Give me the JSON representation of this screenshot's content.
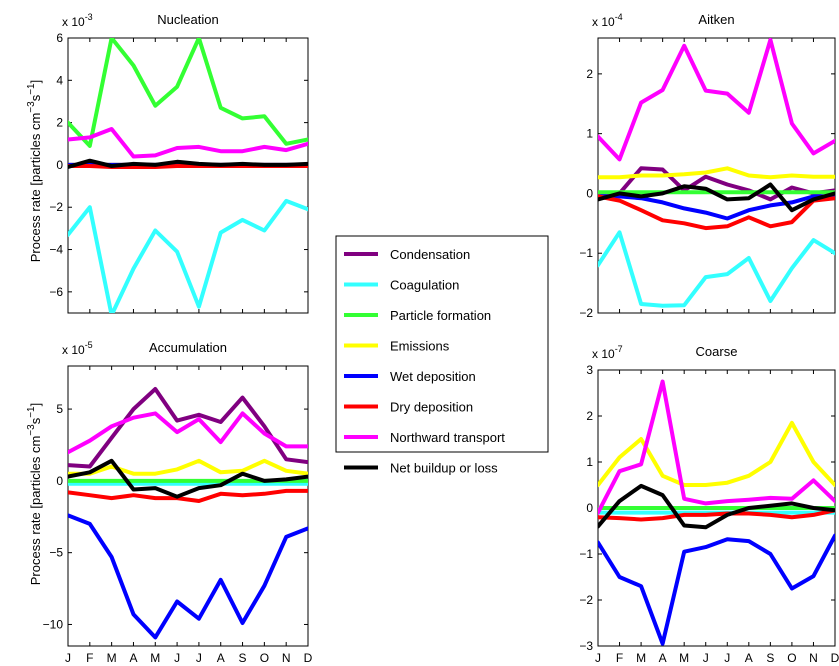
{
  "figure": {
    "ylabel_main": "Process rate [particles cm",
    "ylabel_sup": "−3",
    "ylabel_mid": "s",
    "ylabel_sup2": "−1",
    "ylabel_end": "]"
  },
  "legend": {
    "entries": [
      {
        "name": "Condensation",
        "color": "#800080"
      },
      {
        "name": "Coagulation",
        "color": "#33ffff"
      },
      {
        "name": "Particle formation",
        "color": "#33ff33"
      },
      {
        "name": "Emissions",
        "color": "#ffff00"
      },
      {
        "name": "Wet deposition",
        "color": "#0000ff"
      },
      {
        "name": "Dry deposition",
        "color": "#ff0000"
      },
      {
        "name": "Northward transport",
        "color": "#ff00ff"
      },
      {
        "name": "Net buildup or loss",
        "color": "#000000"
      }
    ]
  },
  "chart_data": [
    {
      "type": "line",
      "title": "Nucleation",
      "multiplier_base": "x 10",
      "multiplier_exp": "-3",
      "x": [
        "J",
        "F",
        "M",
        "A",
        "M",
        "J",
        "J",
        "A",
        "S",
        "O",
        "N",
        "D"
      ],
      "ylim": [
        -7,
        6
      ],
      "yticks": [
        -6,
        -4,
        -2,
        0,
        2,
        4,
        6
      ],
      "yticklabels": [
        "−6",
        "−4",
        "−2",
        "0",
        "2",
        "4",
        "6"
      ],
      "show_xticklabels": false,
      "series": [
        {
          "name": "Condensation",
          "values": [
            0,
            0,
            0,
            0,
            0,
            0,
            0,
            0,
            0,
            0,
            0,
            0
          ]
        },
        {
          "name": "Coagulation",
          "values": [
            -3.3,
            -2.0,
            -7.1,
            -4.9,
            -3.1,
            -4.1,
            -6.7,
            -3.2,
            -2.6,
            -3.1,
            -1.7,
            -2.1
          ]
        },
        {
          "name": "Particle formation",
          "values": [
            2.0,
            0.9,
            6.0,
            4.7,
            2.8,
            3.7,
            6.0,
            2.7,
            2.2,
            2.3,
            1.0,
            1.2
          ]
        },
        {
          "name": "Emissions",
          "values": [
            0,
            0,
            0,
            0,
            0,
            0,
            0,
            0,
            0,
            0,
            0,
            0
          ]
        },
        {
          "name": "Wet deposition",
          "values": [
            0,
            0,
            0,
            0,
            0,
            0,
            0,
            0,
            0,
            0,
            0,
            0
          ]
        },
        {
          "name": "Dry deposition",
          "values": [
            -0.05,
            -0.05,
            -0.1,
            -0.1,
            -0.1,
            -0.05,
            -0.05,
            -0.05,
            -0.05,
            -0.05,
            -0.05,
            -0.05
          ]
        },
        {
          "name": "Northward transport",
          "values": [
            1.2,
            1.3,
            1.7,
            0.4,
            0.45,
            0.8,
            0.85,
            0.65,
            0.65,
            0.85,
            0.7,
            1.0
          ]
        },
        {
          "name": "Net buildup or loss",
          "values": [
            -0.1,
            0.2,
            -0.05,
            0.05,
            0.0,
            0.15,
            0.05,
            0.0,
            0.05,
            0.0,
            0.0,
            0.05
          ]
        }
      ]
    },
    {
      "type": "line",
      "title": "Aitken",
      "multiplier_base": "x 10",
      "multiplier_exp": "-4",
      "x": [
        "J",
        "F",
        "M",
        "A",
        "M",
        "J",
        "J",
        "A",
        "S",
        "O",
        "N",
        "D"
      ],
      "ylim": [
        -2,
        2.6
      ],
      "yticks": [
        -2,
        -1,
        0,
        1,
        2
      ],
      "yticklabels": [
        "−2",
        "−1",
        "0",
        "1",
        "2"
      ],
      "show_xticklabels": false,
      "series": [
        {
          "name": "Condensation",
          "values": [
            -0.05,
            0.0,
            0.42,
            0.4,
            0.05,
            0.28,
            0.15,
            0.05,
            -0.1,
            0.1,
            0.0,
            0.05
          ]
        },
        {
          "name": "Coagulation",
          "values": [
            -1.2,
            -0.65,
            -1.85,
            -1.88,
            -1.87,
            -1.4,
            -1.35,
            -1.08,
            -1.8,
            -1.25,
            -0.78,
            -1.0
          ]
        },
        {
          "name": "Particle formation",
          "values": [
            0.02,
            0.02,
            0.02,
            0.02,
            0.02,
            0.02,
            0.02,
            0.02,
            0.02,
            0.02,
            0.02,
            0.02
          ]
        },
        {
          "name": "Emissions",
          "values": [
            0.27,
            0.27,
            0.3,
            0.3,
            0.32,
            0.35,
            0.42,
            0.3,
            0.27,
            0.3,
            0.28,
            0.28
          ]
        },
        {
          "name": "Wet deposition",
          "values": [
            -0.05,
            -0.05,
            -0.08,
            -0.15,
            -0.25,
            -0.32,
            -0.42,
            -0.28,
            -0.2,
            -0.15,
            -0.05,
            -0.05
          ]
        },
        {
          "name": "Dry deposition",
          "values": [
            -0.05,
            -0.12,
            -0.28,
            -0.45,
            -0.5,
            -0.58,
            -0.55,
            -0.4,
            -0.55,
            -0.48,
            -0.12,
            -0.08
          ]
        },
        {
          "name": "Northward transport",
          "values": [
            0.95,
            0.57,
            1.52,
            1.73,
            2.47,
            1.72,
            1.67,
            1.35,
            2.57,
            1.17,
            0.67,
            0.88
          ]
        },
        {
          "name": "Net buildup or loss",
          "values": [
            -0.1,
            0.0,
            -0.05,
            0.0,
            0.12,
            0.08,
            -0.1,
            -0.08,
            0.15,
            -0.28,
            -0.1,
            0.0
          ]
        }
      ]
    },
    {
      "type": "line",
      "title": "Accumulation",
      "multiplier_base": "x 10",
      "multiplier_exp": "-5",
      "x": [
        "J",
        "F",
        "M",
        "A",
        "M",
        "J",
        "J",
        "A",
        "S",
        "O",
        "N",
        "D"
      ],
      "ylim": [
        -11.5,
        8
      ],
      "yticks": [
        -10,
        -5,
        0,
        5
      ],
      "yticklabels": [
        "−10",
        "−5",
        "0",
        "5"
      ],
      "show_xticklabels": true,
      "series": [
        {
          "name": "Condensation",
          "values": [
            1.1,
            1.0,
            3.0,
            5.0,
            6.4,
            4.2,
            4.6,
            4.1,
            5.8,
            3.8,
            1.5,
            1.3
          ]
        },
        {
          "name": "Coagulation",
          "values": [
            -0.2,
            -0.2,
            -0.2,
            -0.2,
            -0.2,
            -0.2,
            -0.2,
            -0.2,
            -0.2,
            -0.2,
            -0.2,
            -0.2
          ]
        },
        {
          "name": "Particle formation",
          "values": [
            0,
            0,
            0,
            0,
            0,
            0,
            0,
            0,
            0,
            0,
            0,
            0
          ]
        },
        {
          "name": "Emissions",
          "values": [
            0.5,
            0.5,
            1.0,
            0.5,
            0.5,
            0.8,
            1.4,
            0.6,
            0.7,
            1.4,
            0.7,
            0.5
          ]
        },
        {
          "name": "Wet deposition",
          "values": [
            -2.4,
            -3.0,
            -5.3,
            -9.3,
            -10.9,
            -8.4,
            -9.6,
            -6.9,
            -9.9,
            -7.3,
            -3.9,
            -3.3
          ]
        },
        {
          "name": "Dry deposition",
          "values": [
            -0.8,
            -1.0,
            -1.2,
            -1.0,
            -1.2,
            -1.2,
            -1.4,
            -0.9,
            -1.0,
            -0.9,
            -0.7,
            -0.7
          ]
        },
        {
          "name": "Northward transport",
          "values": [
            2.0,
            2.8,
            3.8,
            4.4,
            4.7,
            3.4,
            4.3,
            2.7,
            4.7,
            3.3,
            2.4,
            2.4
          ]
        },
        {
          "name": "Net buildup or loss",
          "values": [
            0.3,
            0.6,
            1.4,
            -0.6,
            -0.5,
            -1.1,
            -0.5,
            -0.3,
            0.5,
            0.0,
            0.1,
            0.3
          ]
        }
      ]
    },
    {
      "type": "line",
      "title": "Coarse",
      "multiplier_base": "x 10",
      "multiplier_exp": "-7",
      "x": [
        "J",
        "F",
        "M",
        "A",
        "M",
        "J",
        "J",
        "A",
        "S",
        "O",
        "N",
        "D"
      ],
      "ylim": [
        -3,
        3
      ],
      "yticks": [
        -3,
        -2,
        -1,
        0,
        1,
        2,
        3
      ],
      "yticklabels": [
        "−3",
        "−2",
        "−1",
        "0",
        "1",
        "2",
        "3"
      ],
      "show_xticklabels": true,
      "series": [
        {
          "name": "Condensation",
          "values": [
            0,
            0,
            0,
            0,
            0,
            0,
            0,
            0,
            0,
            0,
            0,
            0
          ]
        },
        {
          "name": "Coagulation",
          "values": [
            -0.1,
            -0.1,
            -0.1,
            -0.1,
            -0.1,
            -0.1,
            -0.1,
            -0.1,
            -0.1,
            -0.1,
            -0.1,
            -0.1
          ]
        },
        {
          "name": "Particle formation",
          "values": [
            0,
            0,
            0,
            0,
            0,
            0,
            0,
            0,
            0,
            0,
            0,
            0
          ]
        },
        {
          "name": "Emissions",
          "values": [
            0.5,
            1.1,
            1.5,
            0.7,
            0.5,
            0.5,
            0.55,
            0.7,
            1.0,
            1.85,
            1.0,
            0.5
          ]
        },
        {
          "name": "Wet deposition",
          "values": [
            -0.75,
            -1.5,
            -1.7,
            -2.95,
            -0.95,
            -0.85,
            -0.68,
            -0.72,
            -1.0,
            -1.75,
            -1.48,
            -0.6
          ]
        },
        {
          "name": "Dry deposition",
          "values": [
            -0.2,
            -0.22,
            -0.25,
            -0.22,
            -0.15,
            -0.15,
            -0.12,
            -0.12,
            -0.15,
            -0.2,
            -0.15,
            -0.05
          ]
        },
        {
          "name": "Northward transport",
          "values": [
            -0.1,
            0.8,
            0.95,
            2.75,
            0.2,
            0.1,
            0.15,
            0.18,
            0.22,
            0.2,
            0.6,
            0.15
          ]
        },
        {
          "name": "Net buildup or loss",
          "values": [
            -0.4,
            0.15,
            0.48,
            0.28,
            -0.38,
            -0.42,
            -0.15,
            0.0,
            0.05,
            0.1,
            0.0,
            -0.05
          ]
        }
      ]
    }
  ]
}
